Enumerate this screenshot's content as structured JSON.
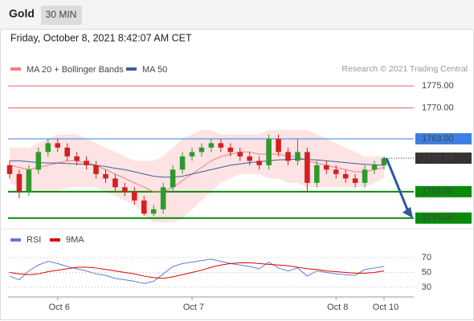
{
  "chart_data": {
    "type": "candlestick",
    "title": "Gold",
    "timeframe": "30 MIN",
    "subtitle": "Friday, October 8, 2021 8:42:07 AM CET",
    "credit": "Research © 2021 Trading Central",
    "categories": [
      null,
      null,
      null,
      null,
      null,
      "Oct 6",
      null,
      null,
      null,
      null,
      null,
      null,
      null,
      null,
      null,
      null,
      null,
      null,
      null,
      "Oct 7",
      null,
      null,
      null,
      null,
      null,
      null,
      null,
      null,
      null,
      null,
      null,
      null,
      null,
      null,
      "Oct 8",
      null,
      null,
      null,
      null,
      "Oct 10"
    ],
    "open": [
      1757,
      1755,
      1751,
      1756,
      1760,
      1762,
      1761,
      1759,
      1758,
      1757,
      1755,
      1754,
      1752,
      1751,
      1749,
      1746,
      1747,
      1752,
      1756,
      1759,
      1760,
      1761,
      1762,
      1761,
      1760,
      1759,
      1758,
      1757,
      1763,
      1760,
      1758,
      1760,
      1753,
      1757,
      1756,
      1755,
      1754,
      1753,
      1756,
      1757
    ],
    "high": [
      1758,
      1756,
      1757,
      1761,
      1763,
      1763,
      1762,
      1760,
      1759,
      1758,
      1756,
      1755,
      1753,
      1752,
      1750,
      1748,
      1753,
      1757,
      1760,
      1761,
      1762,
      1763,
      1763,
      1762,
      1761,
      1760,
      1759,
      1764,
      1764,
      1761,
      1763,
      1761,
      1758,
      1758,
      1757,
      1756,
      1755,
      1757,
      1758,
      1759
    ],
    "low": [
      1754,
      1749.5,
      1750,
      1755,
      1759,
      1760,
      1758,
      1757,
      1756,
      1754,
      1753,
      1751,
      1750,
      1748,
      1745.5,
      1745.5,
      1746,
      1751,
      1755,
      1758,
      1759,
      1760,
      1760,
      1759,
      1758,
      1757,
      1756,
      1756,
      1759,
      1757,
      1757,
      1751,
      1752,
      1755,
      1754,
      1753,
      1752,
      1752,
      1755,
      1756
    ],
    "close": [
      1755,
      1751,
      1756,
      1760,
      1762,
      1761,
      1759,
      1758,
      1757,
      1755,
      1754,
      1752,
      1751,
      1749,
      1746,
      1747,
      1752,
      1756,
      1759,
      1760,
      1761,
      1762,
      1761,
      1760,
      1759,
      1758,
      1757,
      1763,
      1760,
      1758,
      1760,
      1753,
      1757,
      1756,
      1755,
      1754,
      1753,
      1756,
      1757,
      1758.6
    ],
    "up_color": "#2e9a2e",
    "down_color": "#d42020",
    "series": [
      {
        "name": "MA 20 + Bollinger Bands",
        "color": "#f08080",
        "values": [
          1757,
          1756.5,
          1756,
          1756.5,
          1757,
          1757.5,
          1758,
          1758,
          1757.5,
          1757,
          1756,
          1755,
          1754,
          1753,
          1752,
          1751,
          1751,
          1752,
          1753.5,
          1755,
          1756.5,
          1758,
          1759,
          1759.5,
          1760,
          1760,
          1759.5,
          1759.5,
          1759.5,
          1759,
          1759,
          1758,
          1757.5,
          1757,
          1756.5,
          1756,
          1755.5,
          1755.5,
          1756,
          1756.5
        ]
      },
      {
        "name": "MA 50",
        "color": "#3a5f9e",
        "values": [
          1758,
          1758,
          1757.8,
          1757.6,
          1757.5,
          1757.5,
          1757.4,
          1757.3,
          1757.2,
          1757,
          1756.7,
          1756.3,
          1756,
          1755.5,
          1755,
          1754.5,
          1754.3,
          1754.3,
          1754.5,
          1755,
          1755.5,
          1756,
          1756.5,
          1757,
          1757.3,
          1757.6,
          1757.8,
          1758,
          1758.2,
          1758.3,
          1758.4,
          1758.3,
          1758.2,
          1758,
          1757.8,
          1757.6,
          1757.4,
          1757.2,
          1757.1,
          1757
        ]
      }
    ],
    "bands": {
      "color": "#fde3e3",
      "upper": [
        1761,
        1761,
        1761,
        1762,
        1763,
        1764,
        1764,
        1764,
        1763,
        1762,
        1761,
        1760,
        1759,
        1758,
        1758,
        1758,
        1759,
        1761,
        1763,
        1764,
        1765,
        1765,
        1764,
        1764,
        1764,
        1764,
        1764,
        1765,
        1765,
        1765,
        1765,
        1765,
        1764,
        1763,
        1762,
        1761,
        1760,
        1759,
        1759,
        1759
      ],
      "lower": [
        1753,
        1752,
        1751,
        1751,
        1751,
        1751,
        1752,
        1752,
        1752,
        1752,
        1751,
        1750,
        1749,
        1748,
        1746,
        1744,
        1744,
        1744,
        1745,
        1747,
        1749,
        1751,
        1753,
        1754,
        1755,
        1755,
        1755,
        1754,
        1754,
        1753,
        1753,
        1752,
        1752,
        1752,
        1752,
        1752,
        1752,
        1752,
        1753,
        1754
      ]
    },
    "ylim": [
      1743.5,
      1777.2
    ],
    "levels": [
      {
        "value": 1775,
        "label": "1775.00",
        "color": "#e06666"
      },
      {
        "value": 1770,
        "label": "1770.00",
        "color": "#e06666"
      },
      {
        "value": 1763,
        "label": "1763.00",
        "color": "#3d7fe0"
      },
      {
        "value": 1751,
        "label": "1751.00",
        "color": "#0a8a0a"
      },
      {
        "value": 1745,
        "label": "1745.00",
        "color": "#0a8a0a"
      }
    ],
    "last": {
      "value": 1758.6,
      "label": "1758.60",
      "color": "#333333"
    },
    "rsi": {
      "ylim": [
        19,
        82
      ],
      "yticks": [
        70,
        50,
        30
      ],
      "series": [
        {
          "name": "RSI",
          "color": "#5b7fd6",
          "values": [
            45,
            40,
            52,
            60,
            65,
            62,
            58,
            55,
            52,
            48,
            46,
            42,
            40,
            38,
            35,
            38,
            48,
            58,
            62,
            64,
            66,
            68,
            65,
            62,
            60,
            58,
            55,
            64,
            56,
            52,
            56,
            45,
            52,
            50,
            48,
            47,
            46,
            54,
            56,
            58
          ]
        },
        {
          "name": "9MA",
          "color": "#e00000",
          "values": [
            50,
            48,
            47,
            48,
            51,
            53,
            55,
            57,
            57,
            56,
            54,
            52,
            50,
            48,
            45,
            43,
            42,
            44,
            47,
            50,
            53,
            57,
            60,
            62,
            63,
            63,
            62,
            61,
            60,
            59,
            57,
            55,
            54,
            52,
            51,
            50,
            49,
            49,
            50,
            52
          ]
        }
      ]
    }
  }
}
